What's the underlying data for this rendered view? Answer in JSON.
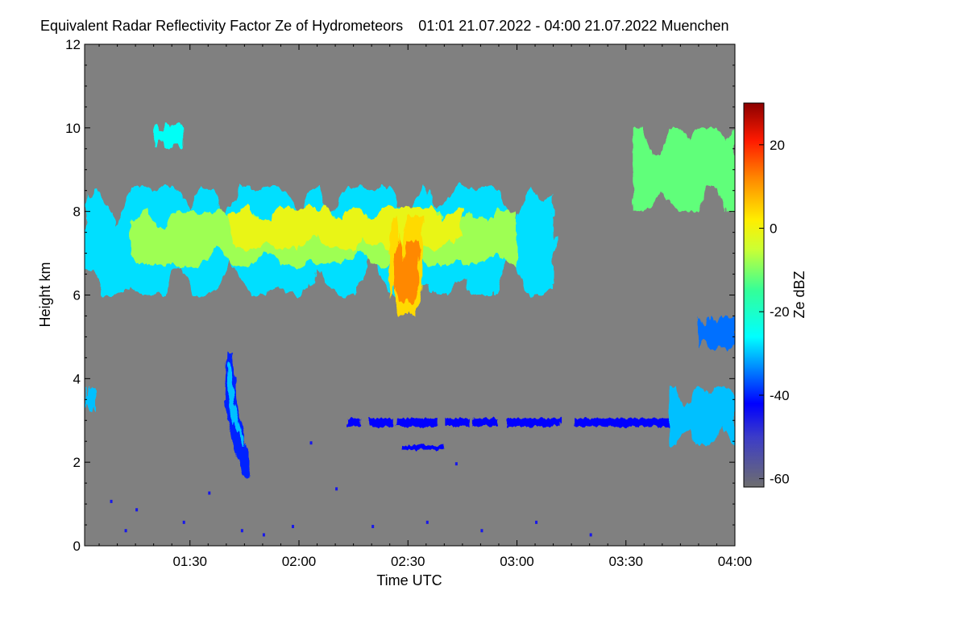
{
  "title": {
    "main": "Equivalent Radar Reflectivity Factor Ze of Hydrometeors",
    "period": "01:01 21.07.2022 - 04:00 21.07.2022 Muenchen"
  },
  "colors": {
    "background_missing": "#808080",
    "cloud_low": "#00e5ff",
    "cloud_mid": "#ffee00",
    "cloud_high": "#ff4400",
    "weak_echo": "#1a1aff"
  },
  "chart_data": {
    "type": "heatmap",
    "title": "Equivalent Radar Reflectivity Factor Ze of Hydrometeors",
    "xlabel": "Time UTC",
    "ylabel": "Height km",
    "xlim_minutes": [
      61,
      240
    ],
    "ylim": [
      0,
      12
    ],
    "x_ticks": [
      {
        "minutes": 90,
        "label": "01:30"
      },
      {
        "minutes": 120,
        "label": "02:00"
      },
      {
        "minutes": 150,
        "label": "02:30"
      },
      {
        "minutes": 180,
        "label": "03:00"
      },
      {
        "minutes": 210,
        "label": "03:30"
      },
      {
        "minutes": 240,
        "label": "04:00"
      }
    ],
    "y_ticks": [
      {
        "value": 0,
        "label": "0"
      },
      {
        "value": 2,
        "label": "2"
      },
      {
        "value": 4,
        "label": "4"
      },
      {
        "value": 6,
        "label": "6"
      },
      {
        "value": 8,
        "label": "8"
      },
      {
        "value": 10,
        "label": "10"
      },
      {
        "value": 12,
        "label": "12"
      }
    ],
    "colorbar": {
      "label": "Ze dBZ",
      "range": [
        -62,
        30
      ],
      "ticks": [
        {
          "value": 20,
          "label": "20"
        },
        {
          "value": 0,
          "label": "0"
        },
        {
          "value": -20,
          "label": "-20"
        },
        {
          "value": -40,
          "label": "-40"
        },
        {
          "value": -60,
          "label": "-60"
        }
      ],
      "colormap": [
        {
          "value": -62,
          "color": "#6e6e6e"
        },
        {
          "value": -50,
          "color": "#3c3cc8"
        },
        {
          "value": -42,
          "color": "#0000ff"
        },
        {
          "value": -32,
          "color": "#00a0ff"
        },
        {
          "value": -26,
          "color": "#00ffff"
        },
        {
          "value": -15,
          "color": "#33ff99"
        },
        {
          "value": -5,
          "color": "#ccff33"
        },
        {
          "value": 2,
          "color": "#ffee00"
        },
        {
          "value": 12,
          "color": "#ff8800"
        },
        {
          "value": 21,
          "color": "#ff1a00"
        },
        {
          "value": 30,
          "color": "#8b0000"
        }
      ]
    },
    "echo_features": [
      {
        "name": "main-cirrus-layer",
        "t_start": 61,
        "t_end": 190,
        "base_km": 6.0,
        "top_km": 8.6,
        "ze_dbz": -10
      },
      {
        "name": "convective-core",
        "t_start": 145,
        "t_end": 154,
        "base_km": 5.5,
        "top_km": 7.9,
        "ze_dbz": 12
      },
      {
        "name": "upper-cirrus-patch",
        "t_start": 80,
        "t_end": 88,
        "base_km": 9.5,
        "top_km": 10.1,
        "ze_dbz": -25
      },
      {
        "name": "upper-cloud-east",
        "t_start": 212,
        "t_end": 240,
        "base_km": 8.0,
        "top_km": 10.0,
        "ze_dbz": -12
      },
      {
        "name": "fall-streak",
        "t_start": 100,
        "t_end": 106,
        "base_km": 1.6,
        "top_km": 4.6,
        "ze_dbz": -30
      },
      {
        "name": "midlevel-thin-layer",
        "t_start": 132,
        "t_end": 240,
        "base_km": 2.8,
        "top_km": 3.5,
        "ze_dbz": -38
      },
      {
        "name": "midlevel-cloud-east",
        "t_start": 222,
        "t_end": 240,
        "base_km": 2.4,
        "top_km": 3.8,
        "ze_dbz": -30
      },
      {
        "name": "small-echo-east",
        "t_start": 230,
        "t_end": 240,
        "base_km": 4.7,
        "top_km": 5.5,
        "ze_dbz": -35
      },
      {
        "name": "low-echo-west",
        "t_start": 61,
        "t_end": 64,
        "base_km": 3.2,
        "top_km": 3.8,
        "ze_dbz": -30
      }
    ]
  }
}
